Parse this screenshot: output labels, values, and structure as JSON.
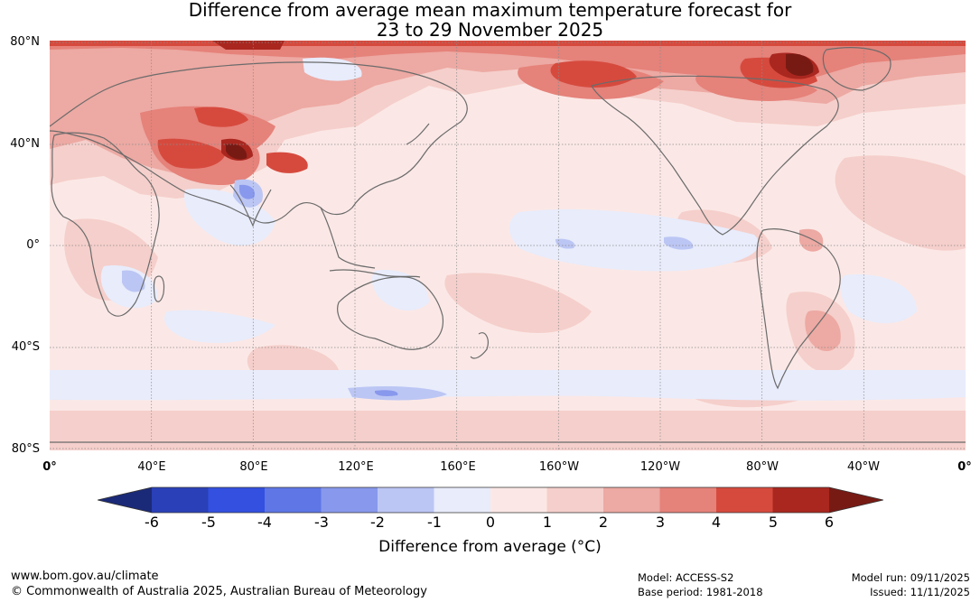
{
  "title": {
    "line1": "Difference from average mean maximum temperature forecast for",
    "line2": "23 to 29 November 2025"
  },
  "map": {
    "lat_labels": [
      "80°N",
      "40°N",
      "0°",
      "40°S",
      "80°S"
    ],
    "lon_labels": [
      "0°",
      "40°E",
      "80°E",
      "120°E",
      "160°E",
      "160°W",
      "120°W",
      "80°W",
      "40°W",
      "0°"
    ],
    "regions": [
      {
        "name": "arctic-siberia-warm",
        "anomaly": 3
      },
      {
        "name": "central-asia-warm",
        "anomaly": 4
      },
      {
        "name": "tibet-hotspot",
        "anomaly": 6
      },
      {
        "name": "india-cool",
        "anomaly": -2
      },
      {
        "name": "alaska-warm",
        "anomaly": 4
      },
      {
        "name": "hudson-bay-hotspot",
        "anomaly": 6
      },
      {
        "name": "southern-ocean-cool",
        "anomaly": -2
      },
      {
        "name": "equatorial-pacific-cool",
        "anomaly": -1
      }
    ]
  },
  "legend": {
    "ticks": [
      "-6",
      "-5",
      "-4",
      "-3",
      "-2",
      "-1",
      "0",
      "1",
      "2",
      "3",
      "4",
      "5",
      "6"
    ],
    "colors": [
      "#1b2a78",
      "#2a40b8",
      "#3350e0",
      "#5e76e6",
      "#8898ec",
      "#bcc6f4",
      "#e8ecfb",
      "#fbe8e6",
      "#f5cfcb",
      "#eda9a3",
      "#e5827a",
      "#d64a3e",
      "#a9271f",
      "#781a14"
    ],
    "title": "Difference from average (°C)"
  },
  "footer": {
    "website": "www.bom.gov.au/climate",
    "copyright": "© Commonwealth of Australia 2025, Australian Bureau of Meteorology",
    "model": "Model: ACCESS-S2",
    "base_period": "Base period: 1981-2018",
    "model_run": "Model run: 09/11/2025",
    "issued": "Issued: 11/11/2025"
  }
}
